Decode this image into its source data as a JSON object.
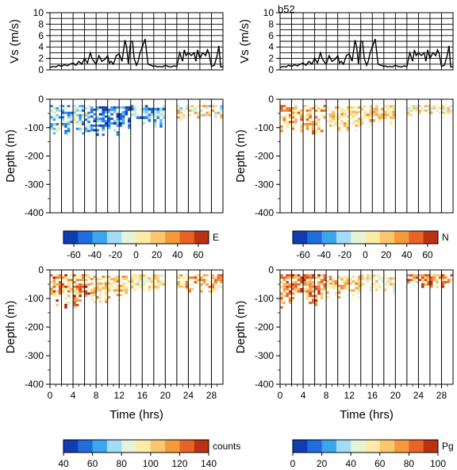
{
  "figure": {
    "panel_label": "b52",
    "colorbars": [
      {
        "label": "E",
        "ticks": [
          "-60",
          "-40",
          "-20",
          "0",
          "20",
          "40",
          "60"
        ],
        "min": -70,
        "max": 70,
        "colormap": "diverging"
      },
      {
        "label": "N",
        "ticks": [
          "-60",
          "-40",
          "-20",
          "0",
          "20",
          "40",
          "60"
        ],
        "min": -70,
        "max": 70,
        "colormap": "diverging"
      },
      {
        "label": "counts",
        "ticks": [
          "40",
          "60",
          "80",
          "100",
          "120",
          "140"
        ],
        "min": 40,
        "max": 140,
        "colormap": "diverging"
      },
      {
        "label": "Pg",
        "ticks": [
          "0",
          "20",
          "40",
          "60",
          "80",
          "100"
        ],
        "min": 0,
        "max": 100,
        "colormap": "diverging"
      }
    ],
    "colors": {
      "stops": [
        "#08279a",
        "#1a5fd6",
        "#3aa6ee",
        "#bfeaf6",
        "#fbfbc2",
        "#fbd27a",
        "#f59a3a",
        "#e5561f",
        "#a1170d"
      ]
    }
  },
  "chart_data": [
    {
      "type": "line",
      "position": "top-left",
      "xlabel": "",
      "ylabel": "Vs (m/s)",
      "xlim": [
        0,
        30
      ],
      "ylim": [
        0,
        10
      ],
      "yticks": [
        "0",
        "2",
        "4",
        "6",
        "8",
        "10"
      ],
      "series": [
        {
          "x": [
            0,
            0.5,
            1,
            1.5,
            2,
            2.5,
            3,
            3.5,
            4,
            4.5,
            5,
            5.5,
            6,
            6.5,
            7,
            7.3,
            7.6,
            8,
            8.5,
            9,
            9.5,
            10,
            10.3,
            10.6,
            11,
            11.5,
            12,
            12.5,
            13,
            13.3,
            13.6,
            14,
            14.3,
            14.6,
            15,
            15.3,
            15.6,
            16,
            16.5,
            17,
            17.5,
            18,
            18.3,
            18.6,
            19,
            19.5,
            20,
            20.5,
            21,
            21.5,
            22,
            22.5,
            23,
            23.3,
            23.6,
            24,
            24.5,
            25,
            25.3,
            25.6,
            26,
            26.5,
            27,
            27.3,
            27.6,
            28,
            28.5,
            29,
            29.3,
            29.6,
            30
          ],
          "y": [
            0.4,
            0.6,
            0.5,
            0.8,
            0.6,
            0.9,
            0.7,
            1.0,
            1.2,
            0.8,
            1.5,
            1.0,
            2.0,
            1.2,
            3.0,
            2.0,
            1.5,
            1.0,
            2.5,
            1.5,
            1.8,
            2.5,
            1.2,
            1.5,
            1.0,
            2.5,
            2.8,
            1.5,
            5.2,
            4.0,
            1.0,
            5.0,
            5.0,
            2.0,
            0.8,
            1.5,
            3.0,
            4.0,
            5.4,
            1.0,
            0.8,
            0.6,
            0.7,
            0.5,
            0.6,
            0.5,
            0.8,
            0.6,
            0.5,
            0.7,
            0.6,
            3.0,
            1.5,
            3.5,
            2.5,
            3.0,
            2.5,
            3.0,
            1.5,
            3.5,
            2.0,
            3.0,
            2.5,
            3.5,
            2.8,
            0.6,
            0.8,
            2.5,
            4.2,
            0.5,
            0.6
          ]
        }
      ]
    },
    {
      "type": "line",
      "position": "top-right",
      "xlabel": "",
      "ylabel": "Vs (m/s)",
      "xlim": [
        0,
        30
      ],
      "ylim": [
        0,
        10
      ],
      "yticks": [
        "0",
        "2",
        "4",
        "6",
        "8",
        "10"
      ],
      "series": [
        {
          "x": [
            0,
            0.5,
            1,
            1.5,
            2,
            2.5,
            3,
            3.5,
            4,
            4.5,
            5,
            5.5,
            6,
            6.5,
            7,
            7.3,
            7.6,
            8,
            8.5,
            9,
            9.5,
            10,
            10.3,
            10.6,
            11,
            11.5,
            12,
            12.5,
            13,
            13.3,
            13.6,
            14,
            14.3,
            14.6,
            15,
            15.3,
            15.6,
            16,
            16.5,
            17,
            17.5,
            18,
            18.3,
            18.6,
            19,
            19.5,
            20,
            20.5,
            21,
            21.5,
            22,
            22.5,
            23,
            23.3,
            23.6,
            24,
            24.5,
            25,
            25.3,
            25.6,
            26,
            26.5,
            27,
            27.3,
            27.6,
            28,
            28.5,
            29,
            29.3,
            29.6,
            30
          ],
          "y": [
            0.4,
            0.6,
            0.5,
            0.8,
            0.6,
            0.9,
            0.7,
            1.0,
            1.2,
            0.8,
            1.5,
            1.0,
            2.0,
            1.2,
            3.0,
            2.0,
            1.5,
            1.0,
            2.5,
            1.5,
            1.8,
            2.5,
            1.2,
            1.5,
            1.0,
            2.5,
            2.8,
            1.5,
            5.2,
            4.0,
            1.0,
            5.0,
            5.0,
            2.0,
            0.8,
            1.5,
            3.0,
            4.0,
            5.4,
            1.0,
            0.8,
            0.6,
            0.7,
            0.5,
            0.6,
            0.5,
            0.8,
            0.6,
            0.5,
            0.7,
            0.6,
            3.0,
            1.5,
            3.5,
            2.5,
            3.0,
            2.5,
            3.0,
            1.5,
            3.5,
            2.0,
            3.0,
            2.5,
            3.5,
            2.8,
            0.6,
            0.8,
            2.5,
            4.2,
            0.5,
            0.6
          ]
        }
      ]
    },
    {
      "type": "heatmap",
      "position": "mid-left",
      "variable": "E",
      "xlabel": "",
      "ylabel": "Depth (m)",
      "xlim": [
        0,
        30
      ],
      "ylim": [
        -400,
        0
      ],
      "yticks": [
        "-400",
        "-300",
        "-200",
        "-100",
        "0"
      ],
      "vlines_x": [
        2,
        4,
        6,
        8,
        10,
        12,
        14,
        16,
        18,
        20,
        22,
        24,
        26,
        28
      ],
      "blocks": [
        {
          "x": [
            0,
            7
          ],
          "y": [
            -130,
            -20
          ],
          "dx": 0.5,
          "dy": 8,
          "base": -20,
          "amp": 35
        },
        {
          "x": [
            7,
            14
          ],
          "y": [
            -140,
            -25
          ],
          "dx": 0.5,
          "dy": 8,
          "base": -45,
          "amp": 25
        },
        {
          "x": [
            14,
            20
          ],
          "y": [
            -100,
            -20
          ],
          "dx": 0.5,
          "dy": 10,
          "base": -30,
          "amp": 30
        },
        {
          "x": [
            22,
            30
          ],
          "y": [
            -75,
            -20
          ],
          "dx": 0.5,
          "dy": 8,
          "base": 5,
          "amp": 35
        }
      ]
    },
    {
      "type": "heatmap",
      "position": "mid-right",
      "variable": "N",
      "xlabel": "",
      "ylabel": "Depth (m)",
      "xlim": [
        0,
        30
      ],
      "ylim": [
        -400,
        0
      ],
      "yticks": [
        "-400",
        "-300",
        "-200",
        "-100",
        "0"
      ],
      "vlines_x": [
        2,
        4,
        6,
        8,
        10,
        12,
        14,
        16,
        18,
        20,
        22,
        24,
        26,
        28
      ],
      "blocks": [
        {
          "x": [
            0,
            8
          ],
          "y": [
            -130,
            -20
          ],
          "dx": 0.5,
          "dy": 8,
          "base": 25,
          "amp": 30
        },
        {
          "x": [
            8,
            14
          ],
          "y": [
            -120,
            -25
          ],
          "dx": 0.5,
          "dy": 8,
          "base": 15,
          "amp": 25
        },
        {
          "x": [
            14,
            20
          ],
          "y": [
            -90,
            -20
          ],
          "dx": 0.5,
          "dy": 10,
          "base": 20,
          "amp": 20
        },
        {
          "x": [
            22,
            30
          ],
          "y": [
            -65,
            -20
          ],
          "dx": 0.5,
          "dy": 8,
          "base": 5,
          "amp": 25
        }
      ]
    },
    {
      "type": "heatmap",
      "position": "bottom-left",
      "variable": "counts",
      "xlabel": "Time (hrs)",
      "ylabel": "Depth (m)",
      "xlim": [
        0,
        30
      ],
      "ylim": [
        -400,
        0
      ],
      "xticks": [
        "0",
        "4",
        "8",
        "12",
        "16",
        "20",
        "24",
        "28"
      ],
      "yticks": [
        "-400",
        "-300",
        "-200",
        "-100",
        "0"
      ],
      "vlines_x": [
        2,
        4,
        6,
        8,
        10,
        12,
        14,
        16,
        18,
        20,
        22,
        24,
        26,
        28
      ],
      "blocks": [
        {
          "x": [
            0,
            7
          ],
          "y": [
            -130,
            -15
          ],
          "dx": 0.5,
          "dy": 8,
          "base": 115,
          "amp": 25
        },
        {
          "x": [
            7,
            14
          ],
          "y": [
            -110,
            -20
          ],
          "dx": 0.5,
          "dy": 8,
          "base": 100,
          "amp": 20
        },
        {
          "x": [
            14,
            20
          ],
          "y": [
            -80,
            -15
          ],
          "dx": 0.5,
          "dy": 10,
          "base": 95,
          "amp": 15
        },
        {
          "x": [
            22,
            30
          ],
          "y": [
            -80,
            -15
          ],
          "dx": 0.5,
          "dy": 8,
          "base": 105,
          "amp": 25
        }
      ]
    },
    {
      "type": "heatmap",
      "position": "bottom-right",
      "variable": "Pg",
      "xlabel": "Time (hrs)",
      "ylabel": "Depth (m)",
      "xlim": [
        0,
        30
      ],
      "ylim": [
        -400,
        0
      ],
      "xticks": [
        "0",
        "4",
        "8",
        "12",
        "16",
        "20",
        "24",
        "28"
      ],
      "yticks": [
        "-400",
        "-300",
        "-200",
        "-100",
        "0"
      ],
      "vlines_x": [
        2,
        4,
        6,
        8,
        10,
        12,
        14,
        16,
        18,
        20,
        22,
        24,
        26,
        28
      ],
      "blocks": [
        {
          "x": [
            0,
            8
          ],
          "y": [
            -130,
            -15
          ],
          "dx": 0.5,
          "dy": 8,
          "base": 78,
          "amp": 20
        },
        {
          "x": [
            8,
            14
          ],
          "y": [
            -100,
            -20
          ],
          "dx": 0.5,
          "dy": 8,
          "base": 62,
          "amp": 20
        },
        {
          "x": [
            14,
            20
          ],
          "y": [
            -80,
            -15
          ],
          "dx": 0.5,
          "dy": 10,
          "base": 55,
          "amp": 15
        },
        {
          "x": [
            22,
            30
          ],
          "y": [
            -60,
            -15
          ],
          "dx": 0.5,
          "dy": 8,
          "base": 75,
          "amp": 20
        }
      ]
    }
  ]
}
